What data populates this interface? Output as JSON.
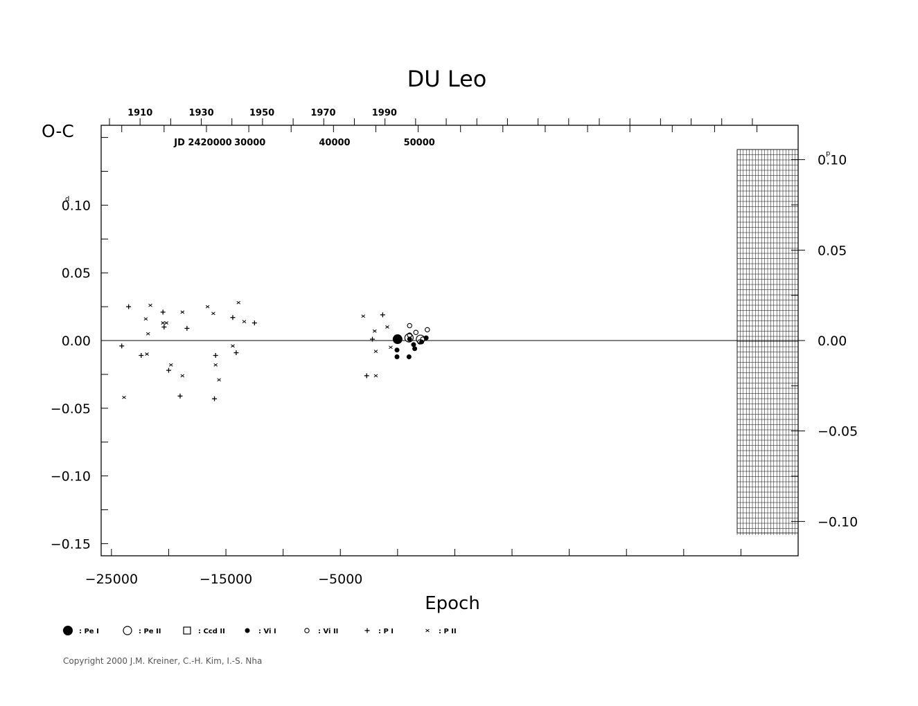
{
  "chart_data": {
    "type": "scatter",
    "title": "DU Leo",
    "ylabel": "O-C",
    "xlabel": "Epoch",
    "jd_label": "JD 2420000",
    "y_unit": "d",
    "y2_unit": "p",
    "xlim": [
      -25900,
      35000
    ],
    "ylim": [
      -0.159,
      0.159
    ],
    "y2lim": [
      -0.119,
      0.119
    ],
    "x_ticks": [
      {
        "value": -25000,
        "label": "−25000"
      },
      {
        "value": -15000,
        "label": "−15000"
      },
      {
        "value": -5000,
        "label": "−5000"
      }
    ],
    "y_ticks": [
      {
        "value": 0.1,
        "label": "0.10"
      },
      {
        "value": 0.05,
        "label": "0.05"
      },
      {
        "value": 0.0,
        "label": "0.00"
      },
      {
        "value": -0.05,
        "label": "−0.05"
      },
      {
        "value": -0.1,
        "label": "−0.10"
      },
      {
        "value": -0.15,
        "label": "−0.15"
      }
    ],
    "y2_ticks": [
      {
        "value": 0.1,
        "label": "0.10"
      },
      {
        "value": 0.05,
        "label": "0.05"
      },
      {
        "value": 0.0,
        "label": "0.00"
      },
      {
        "value": -0.05,
        "label": "−0.05"
      },
      {
        "value": -0.1,
        "label": "−0.10"
      }
    ],
    "year_ticks": [
      {
        "x": -22500,
        "label": "1910"
      },
      {
        "x": -17150,
        "label": "1930"
      },
      {
        "x": -11850,
        "label": "1950"
      },
      {
        "x": -6500,
        "label": "1970"
      },
      {
        "x": -1150,
        "label": "1990"
      }
    ],
    "jd_ticks": [
      {
        "x": -20400,
        "label": ""
      },
      {
        "x": -12900,
        "label": "30000"
      },
      {
        "x": -5500,
        "label": "40000"
      },
      {
        "x": 1900,
        "label": "50000"
      }
    ],
    "reference_line": 0.0,
    "legend": [
      {
        "symbol": "dot-large",
        "label": ": Pe I"
      },
      {
        "symbol": "circle-large",
        "label": ": Pe II"
      },
      {
        "symbol": "square",
        "label": ": Ccd II"
      },
      {
        "symbol": "dot-small",
        "label": ": Vi I"
      },
      {
        "symbol": "circle-small",
        "label": ": Vi II"
      },
      {
        "symbol": "plus",
        "label": ": P I"
      },
      {
        "symbol": "cross",
        "label": ": P II"
      }
    ],
    "series": [
      {
        "name": "Pe I",
        "symbol": "dot-large",
        "points": [
          [
            0,
            0.001
          ]
        ]
      },
      {
        "name": "Pe II",
        "symbol": "circle-large",
        "points": [
          [
            1000,
            0.002
          ],
          [
            2000,
            0.001
          ]
        ]
      },
      {
        "name": "Vi I",
        "symbol": "dot-small",
        "points": [
          [
            -50,
            -0.007
          ],
          [
            -50,
            -0.012
          ],
          [
            1000,
            -0.012
          ],
          [
            1050,
            0.001
          ],
          [
            1400,
            -0.003
          ],
          [
            1500,
            -0.006
          ],
          [
            2100,
            -0.001
          ],
          [
            2500,
            0.002
          ]
        ]
      },
      {
        "name": "Vi II",
        "symbol": "circle-small",
        "points": [
          [
            1050,
            0.011
          ],
          [
            1050,
            0.004
          ],
          [
            1600,
            0.006
          ],
          [
            2600,
            0.008
          ],
          [
            2200,
            0.001
          ],
          [
            1950,
            -0.001
          ]
        ]
      },
      {
        "name": "P I",
        "symbol": "plus",
        "points": [
          [
            -24100,
            -0.004
          ],
          [
            -23500,
            0.025
          ],
          [
            -22400,
            -0.011
          ],
          [
            -20500,
            0.021
          ],
          [
            -20400,
            0.01
          ],
          [
            -20000,
            -0.022
          ],
          [
            -19000,
            -0.041
          ],
          [
            -18400,
            0.009
          ],
          [
            -16000,
            -0.043
          ],
          [
            -15900,
            -0.011
          ],
          [
            -14400,
            0.017
          ],
          [
            -14100,
            -0.009
          ],
          [
            -12500,
            0.013
          ],
          [
            -2200,
            0.001
          ],
          [
            -1300,
            0.019
          ],
          [
            -2700,
            -0.026
          ]
        ]
      },
      {
        "name": "P II",
        "symbol": "cross",
        "points": [
          [
            -23900,
            -0.042
          ],
          [
            -22000,
            0.016
          ],
          [
            -21900,
            -0.01
          ],
          [
            -21800,
            0.005
          ],
          [
            -21600,
            0.026
          ],
          [
            -20500,
            0.013
          ],
          [
            -20200,
            0.013
          ],
          [
            -19800,
            -0.018
          ],
          [
            -18800,
            0.021
          ],
          [
            -18800,
            -0.026
          ],
          [
            -16600,
            0.025
          ],
          [
            -16100,
            0.02
          ],
          [
            -15900,
            -0.018
          ],
          [
            -15600,
            -0.029
          ],
          [
            -14400,
            -0.004
          ],
          [
            -13900,
            0.028
          ],
          [
            -13400,
            0.014
          ],
          [
            -3000,
            0.018
          ],
          [
            -2000,
            0.007
          ],
          [
            -1900,
            -0.008
          ],
          [
            -1900,
            -0.026
          ],
          [
            -900,
            0.01
          ],
          [
            -600,
            -0.005
          ]
        ]
      }
    ]
  },
  "footer": {
    "copyright": "Copyright 2000 J.M. Kreiner, C.-H. Kim, I.-S. Nha"
  }
}
